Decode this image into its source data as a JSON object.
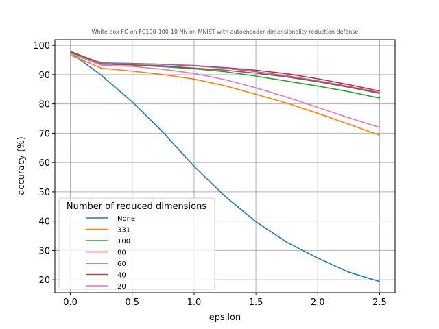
{
  "chart_data": {
    "type": "line",
    "title": "White box FG on FC100-100-10 NN on MNIST with autoencoder dimensionality reduction defense",
    "xlabel": "epsilon",
    "ylabel": "accuracy (%)",
    "xlim": [
      -0.125,
      2.625
    ],
    "ylim": [
      15.6,
      101.9
    ],
    "xticks": [
      "0.0",
      "0.5",
      "1.0",
      "1.5",
      "2.0",
      "2.5"
    ],
    "yticks": [
      "20",
      "30",
      "40",
      "50",
      "60",
      "70",
      "80",
      "90",
      "100"
    ],
    "grid": true,
    "legend": {
      "title": "Number of reduced dimensions",
      "position": "lower-left"
    },
    "x": [
      0.0,
      0.25,
      0.5,
      0.75,
      1.0,
      1.25,
      1.5,
      1.75,
      2.0,
      2.25,
      2.5
    ],
    "series": [
      {
        "name": "None",
        "color": "#1f77b4",
        "values": [
          97.5,
          89.8,
          80.7,
          70.3,
          58.7,
          48.5,
          39.8,
          32.8,
          27.4,
          22.6,
          19.4
        ]
      },
      {
        "name": "331",
        "color": "#ff7f0e",
        "values": [
          96.7,
          92.2,
          91.2,
          90.0,
          88.5,
          86.2,
          83.3,
          80.3,
          76.8,
          73.1,
          69.3
        ]
      },
      {
        "name": "100",
        "color": "#2ca02c",
        "values": [
          97.6,
          93.7,
          93.3,
          92.7,
          92.0,
          91.0,
          89.5,
          87.8,
          86.1,
          84.2,
          82.0
        ]
      },
      {
        "name": "80",
        "color": "#d62728",
        "values": [
          97.8,
          94.0,
          93.8,
          93.5,
          93.1,
          92.4,
          91.5,
          90.3,
          88.6,
          86.6,
          84.4
        ]
      },
      {
        "name": "60",
        "color": "#9467bd",
        "values": [
          97.9,
          93.9,
          93.7,
          93.5,
          93.0,
          92.2,
          91.0,
          89.6,
          87.9,
          86.0,
          83.9
        ]
      },
      {
        "name": "40",
        "color": "#8c564b",
        "values": [
          98.0,
          93.6,
          93.3,
          93.0,
          92.2,
          91.5,
          90.5,
          89.2,
          87.6,
          85.7,
          83.6
        ]
      },
      {
        "name": "20",
        "color": "#e377c2",
        "values": [
          97.2,
          93.2,
          92.8,
          91.8,
          90.4,
          88.3,
          85.5,
          82.3,
          78.8,
          75.3,
          72.0
        ]
      }
    ]
  }
}
